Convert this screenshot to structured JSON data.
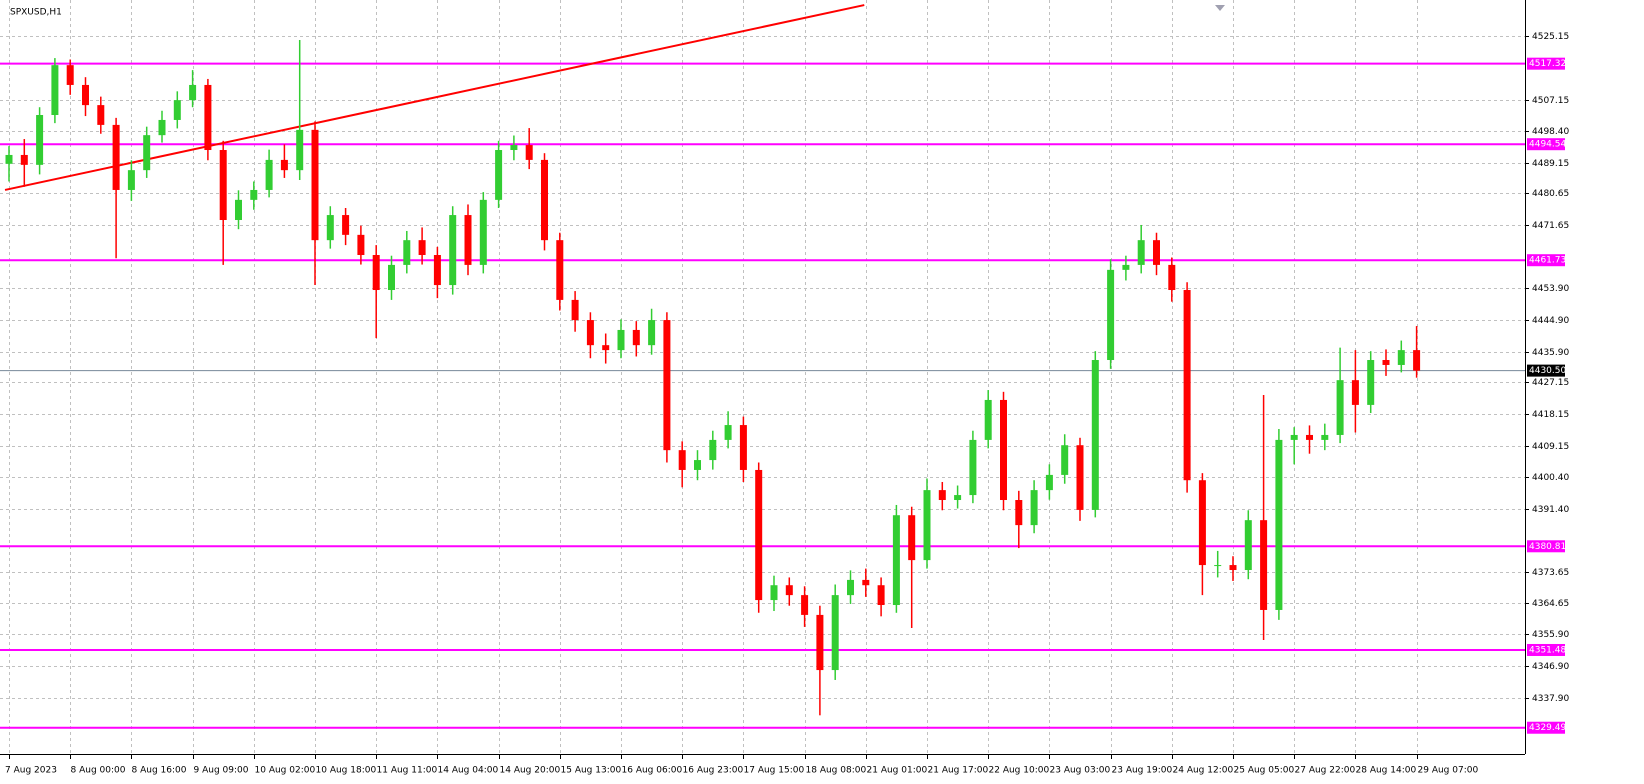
{
  "chart_data": {
    "type": "candlestick",
    "title": "SPXUSD,H1",
    "categories": [
      "7 Aug 2023",
      null,
      null,
      null,
      "8 Aug 00:00",
      null,
      null,
      null,
      "8 Aug 16:00",
      null,
      null,
      null,
      "9 Aug 09:00",
      null,
      null,
      null,
      "10 Aug 02:00",
      null,
      null,
      null,
      "10 Aug 18:00",
      null,
      null,
      null,
      "11 Aug 11:00",
      null,
      null,
      null,
      "14 Aug 04:00",
      null,
      null,
      null,
      "14 Aug 20:00",
      null,
      null,
      null,
      "15 Aug 13:00",
      null,
      null,
      null,
      "16 Aug 06:00",
      null,
      null,
      null,
      "16 Aug 23:00",
      null,
      null,
      null,
      "17 Aug 15:00",
      null,
      null,
      null,
      "18 Aug 08:00",
      null,
      null,
      null,
      "21 Aug 01:00",
      null,
      null,
      null,
      "21 Aug 17:00",
      null,
      null,
      null,
      "22 Aug 10:00",
      null,
      null,
      null,
      "23 Aug 03:00",
      null,
      null,
      null,
      "23 Aug 19:00",
      null,
      null,
      null,
      "24 Aug 12:00",
      null,
      null,
      null,
      "25 Aug 05:00",
      null,
      null,
      null,
      "27 Aug 22:00",
      null,
      null,
      null,
      "28 Aug 14:00",
      null,
      null,
      null,
      "29 Aug 07:00"
    ],
    "open": [
      4489.0,
      4491.5,
      4488.7,
      4502.8,
      4516.9,
      4511.3,
      4505.6,
      4500.0,
      4481.6,
      4487.2,
      4497.1,
      4501.4,
      4507.0,
      4511.3,
      4492.9,
      4473.1,
      4478.8,
      4481.6,
      4490.1,
      4487.2,
      4498.6,
      4467.4,
      4474.5,
      4468.9,
      4463.2,
      4453.3,
      4460.4,
      4467.4,
      4463.2,
      4454.7,
      4474.5,
      4460.4,
      4478.8,
      4492.9,
      4494.3,
      4490.1,
      4467.4,
      4450.5,
      4444.8,
      4437.7,
      4436.3,
      4442.0,
      4437.7,
      4444.8,
      4408.0,
      4402.4,
      4405.2,
      4410.9,
      4415.1,
      4402.4,
      4365.6,
      4369.8,
      4367.0,
      4361.4,
      4345.8,
      4367.0,
      4371.3,
      4369.8,
      4364.2,
      4389.6,
      4376.9,
      4396.7,
      4393.9,
      4395.3,
      4410.9,
      4422.2,
      4393.9,
      4386.8,
      4396.7,
      4401.0,
      4409.4,
      4391.1,
      4433.5,
      4459.0,
      4460.4,
      4467.4,
      4460.4,
      4453.3,
      4399.5,
      4375.5,
      4375.5,
      4374.1,
      4388.2,
      4362.8,
      4410.9,
      4412.3,
      4410.9,
      4412.3,
      4427.8,
      4420.8,
      4433.5,
      4432.1,
      4436.3
    ],
    "high": [
      4494.0,
      4496.0,
      4505.0,
      4518.9,
      4518.5,
      4513.5,
      4508.0,
      4502.0,
      4490.0,
      4499.5,
      4504.0,
      4509.5,
      4515.5,
      4513.0,
      4495.5,
      4481.5,
      4484.0,
      4493.0,
      4494.5,
      4524.0,
      4501.0,
      4477.0,
      4476.5,
      4471.5,
      4466.0,
      4463.0,
      4470.0,
      4471.0,
      4465.5,
      4477.0,
      4477.5,
      4481.0,
      4495.5,
      4497.0,
      4499.1,
      4492.0,
      4469.5,
      4453.0,
      4447.0,
      4441.0,
      4445.0,
      4444.5,
      4448.0,
      4447.0,
      4410.5,
      4408.0,
      4413.5,
      4419.0,
      4417.5,
      4404.5,
      4372.5,
      4372.0,
      4369.5,
      4364.0,
      4370.0,
      4374.0,
      4374.5,
      4372.0,
      4392.5,
      4392.0,
      4400.0,
      4399.0,
      4398.0,
      4413.5,
      4425.0,
      4424.5,
      4396.5,
      4399.5,
      4404.0,
      4412.5,
      4411.5,
      4436.0,
      4462.0,
      4463.0,
      4471.7,
      4469.5,
      4462.5,
      4455.5,
      4401.5,
      4379.5,
      4378.0,
      4391.0,
      4423.6,
      4414.0,
      4414.5,
      4415.0,
      4415.5,
      4437.0,
      4436.3,
      4436.0,
      4436.5,
      4439.0,
      4443.1
    ],
    "low": [
      4484.0,
      4482.5,
      4486.0,
      4500.5,
      4508.5,
      4502.5,
      4497.5,
      4462.3,
      4478.5,
      4485.0,
      4495.0,
      4499.0,
      4505.0,
      4490.0,
      4460.4,
      4470.5,
      4476.0,
      4479.5,
      4485.0,
      4484.4,
      4454.7,
      4465.0,
      4466.0,
      4460.5,
      4439.7,
      4450.5,
      4458.0,
      4460.5,
      4451.0,
      4452.0,
      4457.5,
      4458.0,
      4476.5,
      4490.0,
      4487.5,
      4464.5,
      4447.5,
      4441.5,
      4434.0,
      4432.5,
      4434.0,
      4434.5,
      4435.0,
      4404.5,
      4397.5,
      4399.5,
      4402.5,
      4408.5,
      4399.0,
      4362.0,
      4362.5,
      4364.0,
      4358.0,
      4333.0,
      4343.0,
      4364.5,
      4366.5,
      4361.0,
      4362.0,
      4357.7,
      4374.5,
      4391.0,
      4391.5,
      4393.0,
      4408.5,
      4391.0,
      4380.3,
      4384.5,
      4394.0,
      4398.5,
      4388.0,
      4389.0,
      4431.0,
      4456.0,
      4458.0,
      4457.5,
      4450.0,
      4396.0,
      4367.0,
      4372.0,
      4371.0,
      4371.5,
      4354.3,
      4360.0,
      4404.0,
      4407.0,
      4408.0,
      4410.0,
      4413.0,
      4418.5,
      4429.0,
      4430.0,
      4428.5
    ],
    "close": [
      4491.5,
      4488.7,
      4502.8,
      4516.9,
      4511.3,
      4505.6,
      4500.0,
      4481.6,
      4487.2,
      4497.1,
      4501.4,
      4507.0,
      4511.3,
      4492.9,
      4473.1,
      4478.8,
      4481.6,
      4490.1,
      4487.2,
      4498.6,
      4467.4,
      4474.5,
      4468.9,
      4463.2,
      4453.3,
      4460.4,
      4467.4,
      4463.2,
      4454.7,
      4474.5,
      4460.4,
      4478.8,
      4492.9,
      4494.3,
      4490.1,
      4467.4,
      4450.5,
      4444.8,
      4437.7,
      4436.3,
      4442.0,
      4437.7,
      4444.8,
      4408.0,
      4402.4,
      4405.2,
      4410.9,
      4415.1,
      4402.4,
      4365.6,
      4369.8,
      4367.0,
      4361.4,
      4345.8,
      4367.0,
      4371.3,
      4369.8,
      4364.2,
      4389.6,
      4376.9,
      4396.7,
      4393.9,
      4395.3,
      4410.9,
      4422.2,
      4393.9,
      4386.8,
      4396.7,
      4401.0,
      4409.4,
      4391.1,
      4433.5,
      4459.0,
      4460.4,
      4467.4,
      4460.4,
      4453.3,
      4399.5,
      4375.5,
      4375.5,
      4374.1,
      4388.2,
      4362.8,
      4410.9,
      4412.3,
      4410.9,
      4412.3,
      4427.8,
      4420.8,
      4433.5,
      4432.1,
      4436.3,
      4430.5
    ],
    "up_color": "#32cd32",
    "down_color": "#ff0000",
    "ylim": [
      4323.19,
      4535.33
    ],
    "yticks": [
      4525.15,
      4507.15,
      {
        "value": 4498.4,
        "label": "4498.40"
      },
      4489.15,
      4480.65,
      4471.65,
      {
        "value": 4453.9,
        "label": "4453.90"
      },
      {
        "value": 4444.9,
        "label": "4444.90"
      },
      {
        "value": 4435.9,
        "label": "4435.90"
      },
      4427.15,
      4418.15,
      4409.15,
      {
        "value": 4400.4,
        "label": "4400.40"
      },
      {
        "value": 4391.4,
        "label": "4391.40"
      },
      4373.65,
      4364.65,
      {
        "value": 4355.9,
        "label": "4355.90"
      },
      {
        "value": 4346.9,
        "label": "4346.90"
      },
      {
        "value": 4337.9,
        "label": "4337.90"
      }
    ],
    "grid": true,
    "levels": [
      4517.32,
      4494.54,
      4461.73,
      4380.81,
      4351.48,
      4329.49
    ],
    "level_color": "#ff00ff",
    "price": {
      "value": 4430.5,
      "label": "4430.50"
    },
    "trendline": {
      "x": [
        -0.26,
        55.9
      ],
      "y": [
        4481.6,
        4533.9
      ],
      "color": "#ff0000"
    }
  }
}
